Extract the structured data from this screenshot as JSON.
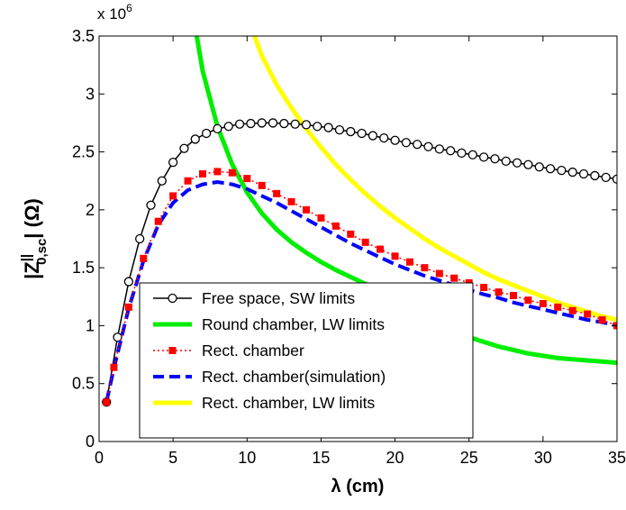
{
  "chart_data": {
    "type": "line",
    "xlabel": "λ (cm)",
    "ylabel": {
      "main": "|Z",
      "sup": "||",
      "sub": "0,sc",
      "rest": "| (Ω)"
    },
    "multiplier": {
      "base": "x 10",
      "exp": "6"
    },
    "xlim": [
      0,
      35
    ],
    "ylim": [
      0,
      3.5
    ],
    "xticks": [
      0,
      5,
      10,
      15,
      20,
      25,
      30,
      35
    ],
    "yticks": [
      0,
      0.5,
      1,
      1.5,
      2,
      2.5,
      3,
      3.5
    ],
    "ytick_labels": [
      "0",
      "0.5",
      "1",
      "1.5",
      "2",
      "2.5",
      "3",
      "3.5"
    ],
    "grid": false,
    "legend_position": "bottom-center",
    "series": [
      {
        "name": "Free space, SW limits",
        "color": "#000000",
        "style": "solid-circle-markers",
        "x": [
          0.5,
          1.25,
          2,
          2.75,
          3.5,
          4.25,
          5,
          5.75,
          6.5,
          7.25,
          8,
          8.75,
          9.5,
          10.25,
          11,
          11.75,
          12.5,
          13.25,
          14,
          14.75,
          15.5,
          16.25,
          17,
          17.75,
          18.5,
          19.25,
          20,
          20.75,
          21.5,
          22.25,
          23,
          23.75,
          24.5,
          25.25,
          26,
          26.75,
          27.5,
          28.25,
          29,
          29.75,
          30.5,
          31.25,
          32,
          32.75,
          33.5,
          34.25,
          35
        ],
        "y": [
          0.34,
          0.9,
          1.38,
          1.75,
          2.04,
          2.25,
          2.41,
          2.53,
          2.61,
          2.66,
          2.7,
          2.72,
          2.74,
          2.745,
          2.75,
          2.75,
          2.745,
          2.74,
          2.735,
          2.72,
          2.71,
          2.69,
          2.675,
          2.66,
          2.64,
          2.62,
          2.6,
          2.58,
          2.565,
          2.545,
          2.525,
          2.51,
          2.49,
          2.475,
          2.455,
          2.44,
          2.42,
          2.405,
          2.39,
          2.37,
          2.355,
          2.34,
          2.325,
          2.31,
          2.295,
          2.28,
          2.265
        ]
      },
      {
        "name": "Round chamber, LW limits",
        "color": "#00ee00",
        "style": "solid-thick",
        "x": [
          6.6,
          7,
          8,
          9,
          10,
          11,
          12,
          13,
          14,
          15,
          16,
          17,
          18,
          19,
          20,
          21,
          22,
          23,
          24,
          25,
          26,
          27,
          28,
          29,
          30,
          31,
          32,
          33,
          34,
          35
        ],
        "y": [
          3.5,
          3.2,
          2.72,
          2.39,
          2.15,
          1.97,
          1.83,
          1.72,
          1.63,
          1.55,
          1.48,
          1.42,
          1.36,
          1.31,
          1.26,
          1.2,
          1.13,
          1.04,
          0.96,
          0.9,
          0.86,
          0.82,
          0.79,
          0.76,
          0.74,
          0.72,
          0.71,
          0.7,
          0.69,
          0.68
        ]
      },
      {
        "name": "Rect. chamber",
        "color": "#ff0000",
        "style": "dotted-square-markers",
        "x": [
          0.5,
          1,
          2,
          3,
          4,
          5,
          6,
          7,
          8,
          9,
          10,
          11,
          12,
          13,
          14,
          15,
          16,
          17,
          18,
          19,
          20,
          21,
          22,
          23,
          24,
          25,
          26,
          27,
          28,
          29,
          30,
          31,
          32,
          33,
          34,
          35
        ],
        "y": [
          0.34,
          0.64,
          1.16,
          1.58,
          1.9,
          2.12,
          2.25,
          2.31,
          2.33,
          2.32,
          2.27,
          2.21,
          2.14,
          2.07,
          2.0,
          1.93,
          1.86,
          1.79,
          1.72,
          1.66,
          1.6,
          1.55,
          1.5,
          1.45,
          1.41,
          1.37,
          1.33,
          1.29,
          1.26,
          1.22,
          1.19,
          1.16,
          1.13,
          1.1,
          1.05,
          1.0
        ]
      },
      {
        "name": "Rect. chamber(simulation)",
        "color": "#0000ff",
        "style": "dashed-thick",
        "x": [
          0.5,
          1,
          2,
          3,
          4,
          5,
          6,
          7,
          8,
          9,
          10,
          11,
          12,
          13,
          14,
          15,
          16,
          17,
          18,
          19,
          20,
          21,
          22,
          23,
          24,
          25,
          26,
          27,
          28,
          29,
          30,
          31,
          32,
          33,
          34,
          35
        ],
        "y": [
          0.34,
          0.63,
          1.15,
          1.56,
          1.87,
          2.06,
          2.17,
          2.22,
          2.24,
          2.22,
          2.18,
          2.12,
          2.06,
          1.99,
          1.92,
          1.85,
          1.78,
          1.71,
          1.65,
          1.59,
          1.53,
          1.48,
          1.43,
          1.39,
          1.35,
          1.31,
          1.27,
          1.24,
          1.2,
          1.17,
          1.14,
          1.11,
          1.08,
          1.05,
          1.03,
          1.0
        ]
      },
      {
        "name": "Rect. chamber, LW limits",
        "color": "#ffff00",
        "style": "solid-thick",
        "x": [
          10.5,
          11,
          12,
          13,
          14,
          15,
          16,
          17,
          18,
          19,
          20,
          21,
          22,
          23,
          24,
          25,
          26,
          27,
          28,
          29,
          30,
          31,
          32,
          33,
          34,
          35
        ],
        "y": [
          3.5,
          3.33,
          3.08,
          2.88,
          2.7,
          2.54,
          2.39,
          2.26,
          2.14,
          2.03,
          1.93,
          1.84,
          1.75,
          1.67,
          1.6,
          1.53,
          1.46,
          1.4,
          1.35,
          1.3,
          1.25,
          1.2,
          1.16,
          1.12,
          1.08,
          1.05
        ]
      }
    ]
  }
}
